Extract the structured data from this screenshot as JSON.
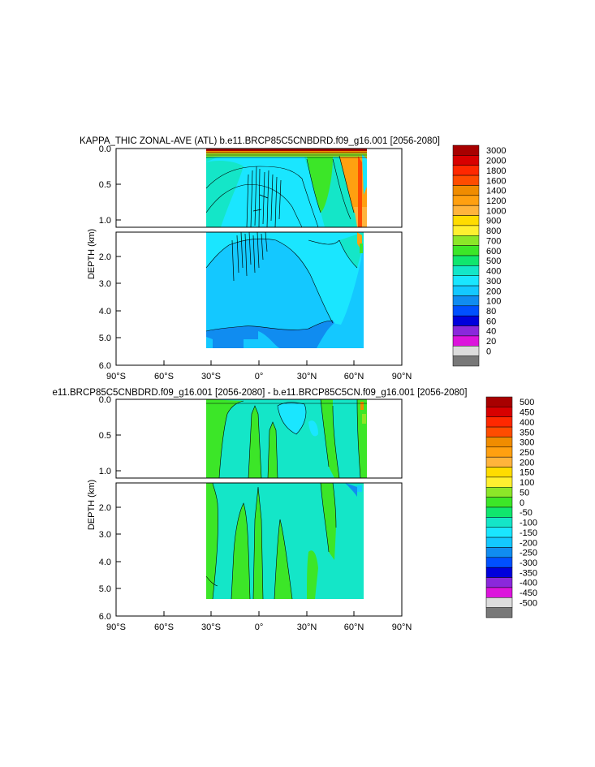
{
  "chart_data": [
    {
      "type": "heatmap",
      "title": "KAPPA_THIC ZONAL-AVE (ATL) b.e11.BRCP85C5CNBDRD.f09_g16.001 [2056-2080]",
      "xlabel": "",
      "ylabel": "DEPTH (km)",
      "x_ticks": [
        "90°S",
        "60°S",
        "30°S",
        "0°",
        "30°N",
        "60°N",
        "90°N"
      ],
      "y_ticks_upper": [
        "0.0",
        "0.5",
        "1.0"
      ],
      "y_ticks_lower": [
        "2.0",
        "3.0",
        "4.0",
        "5.0",
        "6.0"
      ],
      "xlim": [
        -90,
        90
      ],
      "ylim_upper": [
        0,
        1.1
      ],
      "ylim_lower": [
        1.1,
        6.0
      ],
      "legend_placement": "right",
      "colorbar_labels": [
        "3000",
        "2000",
        "1800",
        "1600",
        "1400",
        "1200",
        "1000",
        "900",
        "800",
        "700",
        "600",
        "500",
        "400",
        "300",
        "200",
        "100",
        "80",
        "60",
        "40",
        "20",
        "0"
      ],
      "colorbar_colors": [
        "#a80000",
        "#d80000",
        "#ff2800",
        "#ff4c00",
        "#f08c00",
        "#ffa010",
        "#ffb43c",
        "#ffdc00",
        "#fff030",
        "#8ce628",
        "#3ce628",
        "#10e66e",
        "#14e6c8",
        "#1ae6ff",
        "#14c8ff",
        "#108cf0",
        "#0050ff",
        "#0000dc",
        "#8a28dc",
        "#dc14dc",
        "#dcdcdc",
        "#787878"
      ],
      "grid": false
    },
    {
      "type": "heatmap",
      "title": "e11.BRCP85C5CNBDRD.f09_g16.001 [2056-2080] - b.e11.BRCP85C5CN.f09_g16.001 [2056-2080]",
      "xlabel": "",
      "ylabel": "DEPTH (km)",
      "x_ticks": [
        "90°S",
        "60°S",
        "30°S",
        "0°",
        "30°N",
        "60°N",
        "90°N"
      ],
      "y_ticks_upper": [
        "0.0",
        "0.5",
        "1.0"
      ],
      "y_ticks_lower": [
        "2.0",
        "3.0",
        "4.0",
        "5.0",
        "6.0"
      ],
      "xlim": [
        -90,
        90
      ],
      "ylim_upper": [
        0,
        1.1
      ],
      "ylim_lower": [
        1.1,
        6.0
      ],
      "legend_placement": "right",
      "colorbar_labels": [
        "500",
        "450",
        "400",
        "350",
        "300",
        "250",
        "200",
        "150",
        "100",
        "50",
        "0",
        "-50",
        "-100",
        "-150",
        "-200",
        "-250",
        "-300",
        "-350",
        "-400",
        "-450",
        "-500"
      ],
      "colorbar_colors": [
        "#a80000",
        "#d80000",
        "#ff2800",
        "#ff4c00",
        "#f08c00",
        "#ffa010",
        "#ffb43c",
        "#ffdc00",
        "#fff030",
        "#8ce628",
        "#3ce628",
        "#10e66e",
        "#14e6c8",
        "#1ae6ff",
        "#14c8ff",
        "#108cf0",
        "#0050ff",
        "#0000dc",
        "#8a28dc",
        "#dc14dc",
        "#dcdcdc",
        "#787878"
      ],
      "grid": false
    }
  ]
}
